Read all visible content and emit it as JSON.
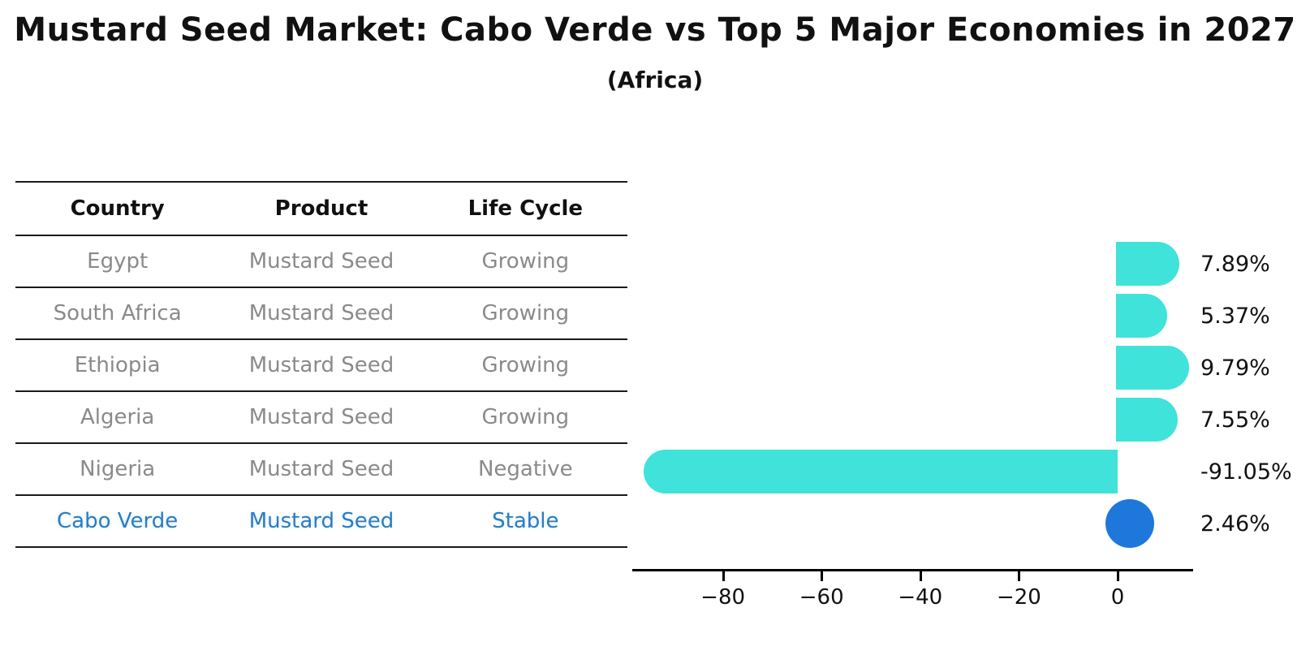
{
  "title": "Mustard Seed Market: Cabo Verde vs Top 5 Major Economies in 2027",
  "subtitle": "(Africa)",
  "table": {
    "headers": {
      "country": "Country",
      "product": "Product",
      "life_cycle": "Life Cycle"
    },
    "rows": [
      {
        "country": "Egypt",
        "product": "Mustard Seed",
        "life_cycle": "Growing",
        "highlight": false
      },
      {
        "country": "South Africa",
        "product": "Mustard Seed",
        "life_cycle": "Growing",
        "highlight": false
      },
      {
        "country": "Ethiopia",
        "product": "Mustard Seed",
        "life_cycle": "Growing",
        "highlight": false
      },
      {
        "country": "Algeria",
        "product": "Mustard Seed",
        "life_cycle": "Growing",
        "highlight": false
      },
      {
        "country": "Nigeria",
        "product": "Mustard Seed",
        "life_cycle": "Negative",
        "highlight": false
      },
      {
        "country": "Cabo Verde",
        "product": "Mustard Seed",
        "life_cycle": "Stable",
        "highlight": true
      }
    ]
  },
  "chart_data": {
    "type": "bar",
    "orientation": "horizontal",
    "title": "",
    "xlabel": "",
    "ylabel": "",
    "categories": [
      "Egypt",
      "South Africa",
      "Ethiopia",
      "Algeria",
      "Nigeria",
      "Cabo Verde"
    ],
    "values": [
      7.89,
      5.37,
      9.79,
      7.55,
      -91.05,
      2.46
    ],
    "value_labels": [
      "7.89%",
      "5.37%",
      "9.79%",
      "7.55%",
      "-91.05%",
      "2.46%"
    ],
    "x_ticks": [
      {
        "value": -80,
        "label": "−80"
      },
      {
        "value": -60,
        "label": "−60"
      },
      {
        "value": -40,
        "label": "−40"
      },
      {
        "value": -20,
        "label": "−20"
      },
      {
        "value": 0,
        "label": "0"
      }
    ],
    "xlim": [
      -98,
      15
    ],
    "grid": false,
    "legend": false,
    "bar_color": "#3fe3da",
    "highlight_color": "#1e78db",
    "highlight_index": 5
  },
  "colors": {
    "row_text": "#8a8a8a",
    "highlight_text": "#2b7cc0",
    "header_text": "#111111",
    "table_line": "#1a1a1a",
    "axis": "#000000"
  }
}
